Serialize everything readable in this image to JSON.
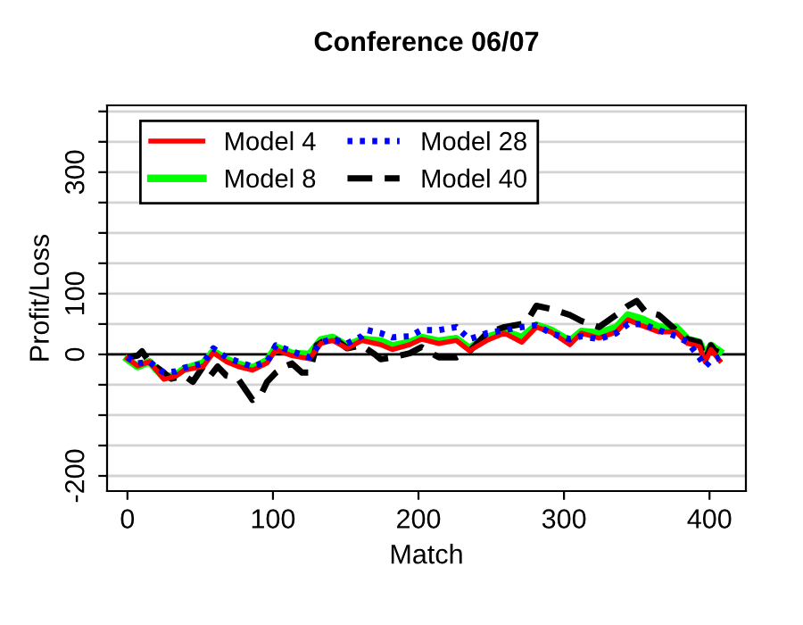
{
  "chart_data": {
    "type": "line",
    "title": "Conference 06/07",
    "xlabel": "Match",
    "ylabel": "Profit/Loss",
    "xlim": [
      -14,
      425
    ],
    "xticks": [
      0,
      100,
      200,
      300,
      400
    ],
    "ylim": [
      -225,
      410
    ],
    "yticks": [
      {
        "value": -200,
        "label": "-200"
      },
      {
        "value": -150,
        "label": null
      },
      {
        "value": -100,
        "label": null
      },
      {
        "value": -50,
        "label": null
      },
      0,
      {
        "value": 50,
        "label": null
      },
      100,
      {
        "value": 150,
        "label": null
      },
      {
        "value": 200,
        "label": null
      },
      {
        "value": 250,
        "label": null
      },
      300,
      {
        "value": 350,
        "label": null
      },
      {
        "value": 400,
        "label": null
      }
    ],
    "grid": "y",
    "legend": "top left",
    "ref_lines": [
      {
        "axis": "y",
        "value": 0,
        "color": "#000000",
        "line_style": "solid"
      }
    ],
    "series": [
      {
        "name": "Model 4",
        "color": "#ff0000",
        "line_style": "solid",
        "x": [
          0,
          7,
          15,
          25,
          33,
          39,
          52,
          59,
          68,
          76,
          86,
          96,
          102,
          113,
          125,
          133,
          141,
          151,
          161,
          174,
          182,
          194,
          202,
          214,
          226,
          235,
          247,
          259,
          271,
          281,
          291,
          304,
          312,
          324,
          336,
          344,
          354,
          365,
          377,
          385,
          393,
          397,
          401,
          407
        ],
        "values": [
          -7,
          -19,
          -12,
          -41,
          -36,
          -26,
          -20,
          3,
          -12,
          -20,
          -26,
          -14,
          8,
          -2,
          -7,
          18,
          23,
          10,
          23,
          16,
          8,
          16,
          25,
          18,
          23,
          6,
          23,
          35,
          20,
          45,
          37,
          16,
          35,
          27,
          37,
          57,
          47,
          37,
          37,
          18,
          13,
          -12,
          8,
          -10
        ]
      },
      {
        "name": "Model 8",
        "color": "#00ff00",
        "line_style": "solid",
        "x": [
          0,
          7,
          15,
          25,
          33,
          39,
          52,
          59,
          68,
          76,
          86,
          96,
          102,
          113,
          125,
          133,
          141,
          151,
          161,
          174,
          182,
          194,
          202,
          214,
          226,
          235,
          247,
          259,
          271,
          281,
          291,
          304,
          312,
          324,
          336,
          344,
          354,
          365,
          377,
          385,
          393,
          397,
          401,
          407
        ],
        "values": [
          -8,
          -20,
          -12,
          -38,
          -34,
          -24,
          -14,
          5,
          -8,
          -16,
          -22,
          -10,
          12,
          2,
          0,
          24,
          28,
          14,
          25,
          22,
          14,
          20,
          28,
          22,
          26,
          10,
          28,
          38,
          28,
          48,
          40,
          22,
          38,
          35,
          45,
          65,
          58,
          45,
          45,
          25,
          20,
          0,
          15,
          5
        ]
      },
      {
        "name": "Model 28",
        "color": "#0000ff",
        "line_style": "dotted",
        "x": [
          0,
          7,
          15,
          25,
          33,
          39,
          52,
          59,
          68,
          76,
          86,
          96,
          102,
          113,
          125,
          133,
          141,
          151,
          161,
          165,
          174,
          182,
          194,
          202,
          214,
          226,
          235,
          247,
          259,
          271,
          281,
          291,
          304,
          312,
          324,
          336,
          344,
          354,
          365,
          377,
          385,
          393,
          397,
          401,
          407
        ],
        "values": [
          -5,
          -15,
          -12,
          -30,
          -28,
          -22,
          -15,
          10,
          -5,
          -12,
          -20,
          -12,
          15,
          5,
          -5,
          20,
          25,
          18,
          30,
          40,
          35,
          28,
          30,
          40,
          40,
          45,
          25,
          35,
          40,
          45,
          48,
          35,
          25,
          30,
          25,
          35,
          50,
          50,
          40,
          30,
          20,
          -5,
          -20,
          -10,
          -5
        ]
      },
      {
        "name": "Model 40",
        "color": "#000000",
        "line_style": "dashed",
        "x": [
          0,
          7,
          10,
          15,
          25,
          30,
          39,
          45,
          52,
          57,
          62,
          68,
          76,
          86,
          92,
          96,
          102,
          108,
          113,
          120,
          125,
          130,
          137,
          141,
          151,
          161,
          170,
          174,
          182,
          194,
          202,
          214,
          226,
          235,
          247,
          259,
          271,
          276,
          281,
          291,
          304,
          312,
          324,
          336,
          344,
          350,
          356,
          365,
          377,
          385,
          393,
          397,
          401,
          404,
          407
        ],
        "values": [
          -5,
          -2,
          5,
          -12,
          -30,
          -40,
          -35,
          -45,
          -20,
          -35,
          -20,
          -35,
          -40,
          -75,
          -65,
          -45,
          -30,
          -20,
          -15,
          -30,
          -30,
          15,
          25,
          28,
          10,
          15,
          0,
          -8,
          -5,
          2,
          12,
          -5,
          -5,
          5,
          35,
          45,
          50,
          60,
          80,
          75,
          65,
          55,
          45,
          65,
          80,
          88,
          70,
          65,
          40,
          25,
          20,
          -10,
          15,
          5,
          20
        ]
      }
    ]
  }
}
